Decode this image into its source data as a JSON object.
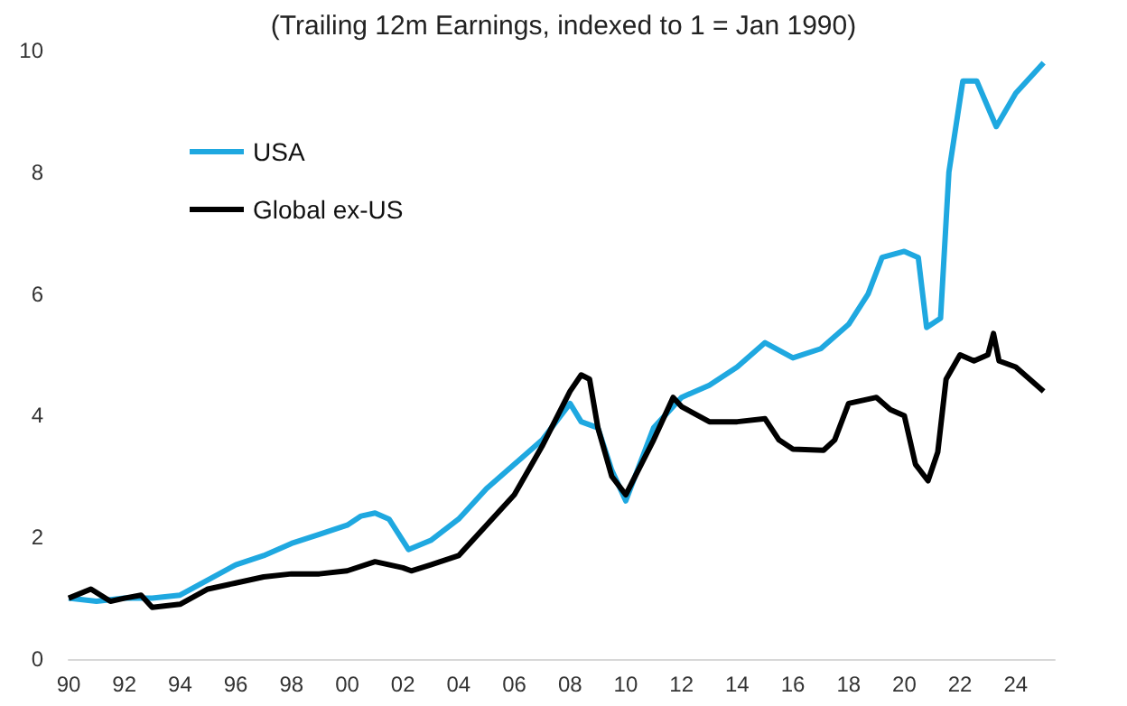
{
  "chart_data": {
    "type": "line",
    "title": "(Trailing 12m Earnings, indexed to 1 = Jan 1990)",
    "legend": "top left",
    "grid": false,
    "marker": "none",
    "line_style": "solid",
    "xlim": [
      1990,
      2025.4
    ],
    "xticks": [
      {
        "value": 1990,
        "label": "90"
      },
      {
        "value": 1992,
        "label": "92"
      },
      {
        "value": 1994,
        "label": "94"
      },
      {
        "value": 1996,
        "label": "96"
      },
      {
        "value": 1998,
        "label": "98"
      },
      {
        "value": 2000,
        "label": "00"
      },
      {
        "value": 2002,
        "label": "02"
      },
      {
        "value": 2004,
        "label": "04"
      },
      {
        "value": 2006,
        "label": "06"
      },
      {
        "value": 2008,
        "label": "08"
      },
      {
        "value": 2010,
        "label": "10"
      },
      {
        "value": 2012,
        "label": "12"
      },
      {
        "value": 2014,
        "label": "14"
      },
      {
        "value": 2016,
        "label": "16"
      },
      {
        "value": 2018,
        "label": "18"
      },
      {
        "value": 2020,
        "label": "20"
      },
      {
        "value": 2022,
        "label": "22"
      },
      {
        "value": 2024,
        "label": "24"
      }
    ],
    "ylim": [
      0,
      10
    ],
    "yticks": [
      0,
      2,
      4,
      6,
      8,
      10
    ],
    "series": [
      {
        "name": "USA",
        "color": "#1fa8e0",
        "x": [
          1990,
          1991,
          1992,
          1993,
          1994,
          1995,
          1996,
          1997,
          1998,
          1999,
          2000,
          2000.5,
          2001,
          2001.5,
          2002.2,
          2003,
          2004,
          2005,
          2006,
          2007,
          2008,
          2008.4,
          2009,
          2009.5,
          2010,
          2011,
          2012,
          2013,
          2014,
          2015,
          2016,
          2017,
          2018,
          2018.7,
          2019.2,
          2020,
          2020.5,
          2020.8,
          2021.3,
          2021.6,
          2022.1,
          2022.6,
          2023.3,
          2024,
          2025
        ],
        "values": [
          1.0,
          0.95,
          1.0,
          1.0,
          1.05,
          1.3,
          1.55,
          1.7,
          1.9,
          2.05,
          2.2,
          2.35,
          2.4,
          2.3,
          1.8,
          1.95,
          2.3,
          2.8,
          3.2,
          3.6,
          4.2,
          3.9,
          3.8,
          3.1,
          2.6,
          3.8,
          4.3,
          4.5,
          4.8,
          5.2,
          4.95,
          5.1,
          5.5,
          6.0,
          6.6,
          6.7,
          6.6,
          5.45,
          5.6,
          8.0,
          9.5,
          9.5,
          8.75,
          9.3,
          9.8
        ]
      },
      {
        "name": "Global ex-US",
        "color": "#000000",
        "x": [
          1990,
          1990.8,
          1991.5,
          1992,
          1992.6,
          1993,
          1994,
          1995,
          1996,
          1997,
          1998,
          1999,
          2000,
          2001,
          2002,
          2002.3,
          2003,
          2004,
          2005,
          2006,
          2007,
          2008,
          2008.4,
          2008.7,
          2009,
          2009.5,
          2010,
          2011,
          2011.7,
          2012,
          2013,
          2014,
          2015,
          2015.5,
          2016,
          2017.1,
          2017.5,
          2018,
          2019,
          2019.5,
          2020,
          2020.4,
          2020.85,
          2021.2,
          2021.5,
          2022,
          2022.5,
          2023,
          2023.2,
          2023.4,
          2024,
          2024.5,
          2025
        ],
        "values": [
          1.0,
          1.15,
          0.95,
          1.0,
          1.05,
          0.85,
          0.9,
          1.15,
          1.25,
          1.35,
          1.4,
          1.4,
          1.45,
          1.6,
          1.5,
          1.45,
          1.55,
          1.7,
          2.2,
          2.7,
          3.5,
          4.4,
          4.67,
          4.6,
          3.8,
          3.0,
          2.7,
          3.6,
          4.3,
          4.15,
          3.9,
          3.9,
          3.95,
          3.6,
          3.45,
          3.43,
          3.6,
          4.2,
          4.3,
          4.1,
          4.0,
          3.2,
          2.93,
          3.4,
          4.6,
          5.0,
          4.9,
          5.0,
          5.35,
          4.9,
          4.8,
          4.6,
          4.4
        ]
      }
    ]
  }
}
